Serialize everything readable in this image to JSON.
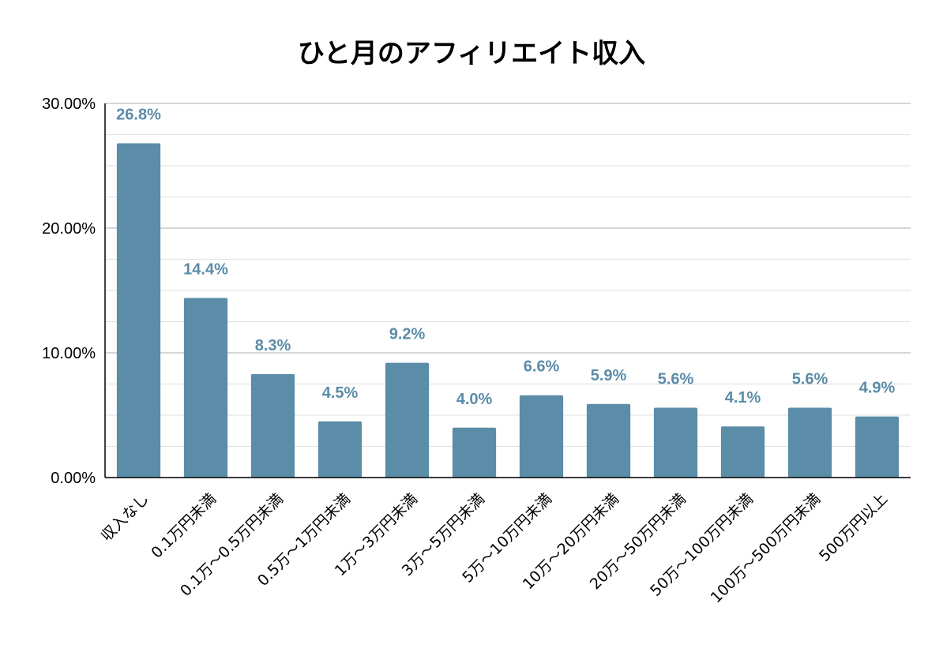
{
  "chart_data": {
    "type": "bar",
    "title": "ひと月のアフィリエイト収入",
    "xlabel": "",
    "ylabel": "",
    "categories": [
      "収入なし",
      "0.1万円未満",
      "0.1万～0.5万円未満",
      "0.5万～1万円未満",
      "1万～3万円未満",
      "3万～5万円未満",
      "5万～10万円未満",
      "10万～20万円未満",
      "20万～50万円未満",
      "50万～100万円未満",
      "100万～500万円未満",
      "500万円以上"
    ],
    "values": [
      26.8,
      14.4,
      8.3,
      4.5,
      9.2,
      4.0,
      6.6,
      5.9,
      5.6,
      4.1,
      5.6,
      4.9
    ],
    "data_labels": [
      "26.8%",
      "14.4%",
      "8.3%",
      "4.5%",
      "9.2%",
      "4.0%",
      "6.6%",
      "5.9%",
      "5.6%",
      "4.1%",
      "5.6%",
      "4.9%"
    ],
    "ylim": [
      0,
      30
    ],
    "yticks": [
      0,
      10,
      20,
      30
    ],
    "ytick_labels": [
      "0.00%",
      "10.00%",
      "20.00%",
      "30.00%"
    ],
    "grid": true,
    "legend": "none",
    "bar_color": "#5b8ca8",
    "label_color": "#5b8ca8"
  }
}
